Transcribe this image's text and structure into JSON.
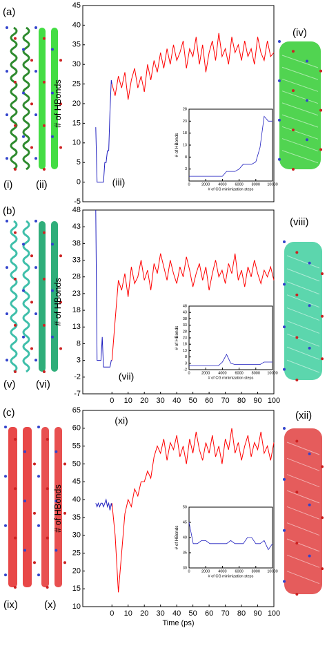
{
  "chart_data": [
    {
      "type": "line",
      "ylabel": "# of HBonds",
      "annotation": "(iii)",
      "xlim": [
        -18,
        100
      ],
      "ylim": [
        -5,
        45
      ],
      "yticks": [
        -5,
        0,
        5,
        10,
        15,
        20,
        25,
        30,
        35,
        40,
        45
      ],
      "series": [
        {
          "color": "#1f1fbf",
          "x": [
            -10,
            -9.2,
            -8.4,
            -7.6,
            -6.8,
            -6,
            -5.2,
            -4.4,
            -3.6,
            -2.8,
            -2,
            -1.2,
            -0.4,
            0
          ],
          "values": [
            14,
            0,
            0,
            0,
            0,
            0,
            0,
            5,
            5,
            8,
            8,
            18,
            26,
            25
          ]
        },
        {
          "color": "#ff0000",
          "x": [
            0,
            2,
            4,
            6,
            8,
            10,
            12,
            14,
            16,
            18,
            20,
            22,
            24,
            26,
            28,
            30,
            32,
            34,
            36,
            38,
            40,
            42,
            44,
            46,
            48,
            50,
            52,
            54,
            56,
            58,
            60,
            62,
            64,
            66,
            68,
            70,
            72,
            74,
            76,
            78,
            80,
            82,
            84,
            86,
            88,
            90,
            92,
            94,
            96,
            98,
            100
          ],
          "values": [
            25,
            22,
            27,
            24,
            28,
            21,
            26,
            29,
            24,
            27,
            23,
            30,
            26,
            31,
            28,
            33,
            29,
            34,
            30,
            35,
            31,
            33,
            36,
            29,
            34,
            32,
            37,
            30,
            35,
            28,
            33,
            36,
            31,
            38,
            32,
            34,
            30,
            37,
            33,
            35,
            31,
            36,
            32,
            34,
            30,
            37,
            33,
            31,
            36,
            32,
            33
          ]
        }
      ]
    },
    {
      "type": "line",
      "ylabel": "# of HBonds",
      "xlabel": "# of CG minimization steps",
      "xlim": [
        0,
        10000
      ],
      "ylim": [
        -2,
        28
      ],
      "yticks": [
        3,
        8,
        13,
        18,
        23,
        28
      ],
      "xticks": [
        0,
        2000,
        4000,
        6000,
        8000,
        10000
      ],
      "series": [
        {
          "color": "#1f1fbf",
          "x": [
            0,
            500,
            1000,
            1500,
            2000,
            2500,
            3000,
            3500,
            4000,
            4500,
            5000,
            5500,
            6000,
            6500,
            7000,
            7500,
            8000,
            8500,
            9000,
            9500,
            10000
          ],
          "values": [
            0,
            0,
            0,
            0,
            0,
            0,
            0,
            0,
            0,
            2,
            2,
            2,
            3,
            5,
            5,
            5,
            6,
            12,
            25,
            23,
            23
          ]
        }
      ]
    },
    {
      "type": "line",
      "ylabel": "# of HBonds",
      "annotation": "(vii)",
      "xlim": [
        -18,
        100
      ],
      "ylim": [
        -7,
        48
      ],
      "yticks": [
        -7,
        -2,
        3,
        8,
        13,
        18,
        23,
        28,
        33,
        38,
        43,
        48
      ],
      "xticks": [
        0,
        10,
        20,
        30,
        40,
        50,
        60,
        70,
        80,
        90,
        100
      ],
      "series": [
        {
          "color": "#1f1fbf",
          "x": [
            -10,
            -9.2,
            -8.4,
            -7.6,
            -6.8,
            -6,
            -5.2,
            -4.4,
            -3.6,
            -2.8,
            -2,
            -1.2,
            -0.4,
            0
          ],
          "values": [
            48,
            3,
            3,
            3,
            3,
            10,
            1,
            1,
            1,
            1,
            1,
            1,
            3,
            3
          ]
        },
        {
          "color": "#ff0000",
          "x": [
            0,
            2,
            4,
            6,
            8,
            10,
            12,
            14,
            16,
            18,
            20,
            22,
            24,
            26,
            28,
            30,
            32,
            34,
            36,
            38,
            40,
            42,
            44,
            46,
            48,
            50,
            52,
            54,
            56,
            58,
            60,
            62,
            64,
            66,
            68,
            70,
            72,
            74,
            76,
            78,
            80,
            82,
            84,
            86,
            88,
            90,
            92,
            94,
            96,
            98,
            100
          ],
          "values": [
            3,
            15,
            27,
            24,
            29,
            22,
            31,
            26,
            28,
            33,
            27,
            30,
            24,
            32,
            29,
            35,
            31,
            27,
            33,
            29,
            26,
            31,
            28,
            34,
            30,
            25,
            29,
            32,
            27,
            31,
            24,
            29,
            33,
            28,
            30,
            26,
            32,
            29,
            35,
            27,
            30,
            25,
            31,
            28,
            33,
            29,
            26,
            30,
            28,
            31,
            27
          ]
        }
      ]
    },
    {
      "type": "line",
      "ylabel": "# of HBonds",
      "xlabel": "# of CG minimization steps",
      "xlim": [
        0,
        10000
      ],
      "ylim": [
        -2,
        48
      ],
      "yticks": [
        -2,
        3,
        8,
        13,
        18,
        23,
        28,
        33,
        38,
        43,
        48
      ],
      "xticks": [
        0,
        2000,
        4000,
        6000,
        8000,
        10000
      ],
      "series": [
        {
          "color": "#1f1fbf",
          "x": [
            0,
            500,
            1000,
            1500,
            2000,
            2500,
            3000,
            3500,
            4000,
            4500,
            5000,
            5500,
            6000,
            6500,
            7000,
            7500,
            8000,
            8500,
            9000,
            9500,
            10000
          ],
          "values": [
            1,
            1,
            1,
            1,
            1,
            1,
            1,
            1,
            4,
            10,
            3,
            2,
            2,
            2,
            2,
            2,
            2,
            2,
            4,
            4,
            4
          ]
        }
      ]
    },
    {
      "type": "line",
      "ylabel": "# of HBonds",
      "xlabel": "Time (ps)",
      "annotation": "(xi)",
      "xlim": [
        -18,
        100
      ],
      "ylim": [
        10,
        65
      ],
      "yticks": [
        10,
        15,
        20,
        25,
        30,
        35,
        40,
        45,
        50,
        55,
        60,
        65
      ],
      "xticks": [
        0,
        10,
        20,
        30,
        40,
        50,
        60,
        70,
        80,
        90,
        100
      ],
      "series": [
        {
          "color": "#1f1fbf",
          "x": [
            -10,
            -9.2,
            -8.4,
            -7.6,
            -6.8,
            -6,
            -5.2,
            -4.4,
            -3.6,
            -2.8,
            -2,
            -1.2,
            -0.4,
            0
          ],
          "values": [
            39,
            38,
            39,
            38,
            39,
            39,
            38,
            39,
            40,
            38,
            39,
            37,
            39,
            38
          ]
        },
        {
          "color": "#ff0000",
          "x": [
            0,
            2,
            4,
            6,
            8,
            10,
            12,
            14,
            16,
            18,
            20,
            22,
            24,
            26,
            28,
            30,
            32,
            34,
            36,
            38,
            40,
            42,
            44,
            46,
            48,
            50,
            52,
            54,
            56,
            58,
            60,
            62,
            64,
            66,
            68,
            70,
            72,
            74,
            76,
            78,
            80,
            82,
            84,
            86,
            88,
            90,
            92,
            94,
            96,
            98,
            100
          ],
          "values": [
            39,
            30,
            14,
            25,
            36,
            40,
            38,
            43,
            41,
            45,
            45,
            48,
            46,
            52,
            55,
            53,
            57,
            51,
            56,
            54,
            58,
            52,
            55,
            50,
            57,
            53,
            59,
            54,
            51,
            56,
            53,
            58,
            52,
            55,
            50,
            57,
            54,
            60,
            53,
            56,
            51,
            55,
            58,
            52,
            56,
            54,
            59,
            53,
            55,
            51,
            56
          ]
        }
      ]
    },
    {
      "type": "line",
      "ylabel": "# of HBonds",
      "xlabel": "# of CG minimization steps",
      "xlim": [
        0,
        10000
      ],
      "ylim": [
        30,
        50
      ],
      "yticks": [
        30,
        35,
        40,
        45,
        50
      ],
      "xticks": [
        0,
        2000,
        4000,
        6000,
        8000,
        10000
      ],
      "series": [
        {
          "color": "#1f1fbf",
          "x": [
            0,
            500,
            1000,
            1500,
            2000,
            2500,
            3000,
            3500,
            4000,
            4500,
            5000,
            5500,
            6000,
            6500,
            7000,
            7500,
            8000,
            8500,
            9000,
            9500,
            10000
          ],
          "values": [
            45,
            38,
            38,
            39,
            39,
            38,
            38,
            38,
            38,
            38,
            39,
            38,
            38,
            38,
            40,
            40,
            38,
            38,
            39,
            36,
            38
          ]
        }
      ]
    }
  ],
  "labels": [
    "(a)",
    "(i)",
    "(ii)",
    "(iv)",
    "(b)",
    "(v)",
    "(vi)",
    "(viii)",
    "(c)",
    "(ix)",
    "(x)",
    "(xii)"
  ]
}
